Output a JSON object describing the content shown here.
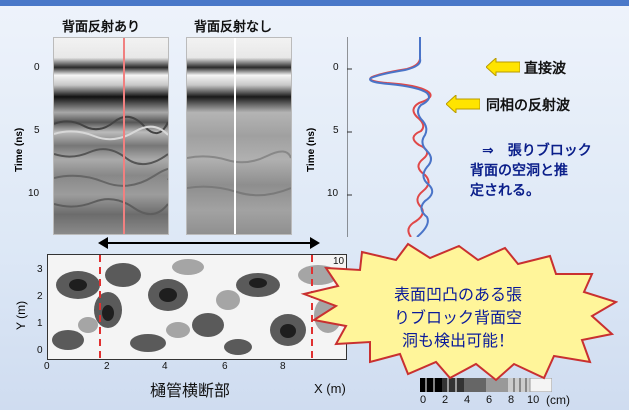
{
  "panels": {
    "with_reflection_label": "背面反射あり",
    "without_reflection_label": "背面反射なし"
  },
  "left_axis": {
    "title": "Time (ns)",
    "ticks": [
      "0",
      "5",
      "10"
    ]
  },
  "right_axis": {
    "title": "Time (ns)",
    "ticks": [
      "0",
      "5",
      "10"
    ]
  },
  "callouts": {
    "direct_wave": "直接波",
    "in_phase_reflection": "同相の反射波",
    "conclusion_line1": "⇒　張りブロック",
    "conclusion_line2": "背面の空洞と推",
    "conclusion_line3": "定される。"
  },
  "map": {
    "y_axis_title": "Y (m)",
    "y_ticks": [
      "3",
      "2",
      "1",
      "0"
    ],
    "x_ticks": [
      "0",
      "2",
      "4",
      "6",
      "8",
      "10"
    ],
    "x_axis_title": "X (m)",
    "section_label": "樋管横断部"
  },
  "colorbar": {
    "ticks": [
      "0",
      "2",
      "4",
      "6",
      "8",
      "10"
    ],
    "unit": "(cm)"
  },
  "bubble": {
    "line1": "表面凹凸のある張",
    "line2": "りブロック背面空",
    "line3": "洞も検出可能！"
  },
  "colors": {
    "accent": "#4a78c8",
    "callout_arrow": "#ffe400",
    "bubble_fill": "#fff59a",
    "red_trace": "#e04848",
    "blue_trace": "#4a74c8"
  }
}
